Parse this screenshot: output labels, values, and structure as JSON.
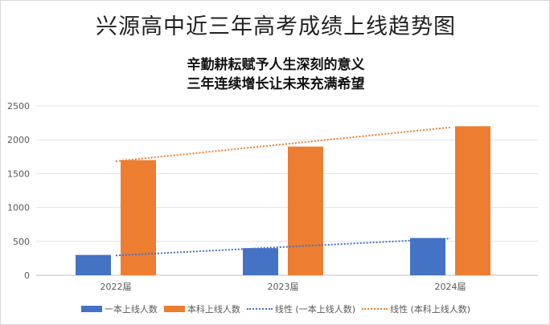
{
  "chart_data": {
    "type": "bar",
    "title": "兴源高中近三年高考成绩上线趋势图",
    "subtitle_lines": [
      "辛勤耕耘赋予人生深刻的意义",
      "三年连续增长让未来充满希望"
    ],
    "categories": [
      "2022届",
      "2023届",
      "2024届"
    ],
    "series": [
      {
        "name": "一本上线人数",
        "values": [
          300,
          400,
          550
        ],
        "color": "#4472C4"
      },
      {
        "name": "本科上线人数",
        "values": [
          1700,
          1900,
          2200
        ],
        "color": "#ED7D31"
      }
    ],
    "trendlines": [
      {
        "name": "线性 (一本上线人数)",
        "type": "linear",
        "series": "一本上线人数",
        "color": "#4472C4"
      },
      {
        "name": "线性 (本科上线人数)",
        "type": "linear",
        "series": "本科上线人数",
        "color": "#ED7D31"
      }
    ],
    "y_ticks": [
      "0",
      "500",
      "1000",
      "1500",
      "2000",
      "2500"
    ],
    "ylim": [
      0,
      2500
    ],
    "xlabel": "",
    "ylabel": "",
    "grid": true,
    "legend_position": "bottom"
  }
}
